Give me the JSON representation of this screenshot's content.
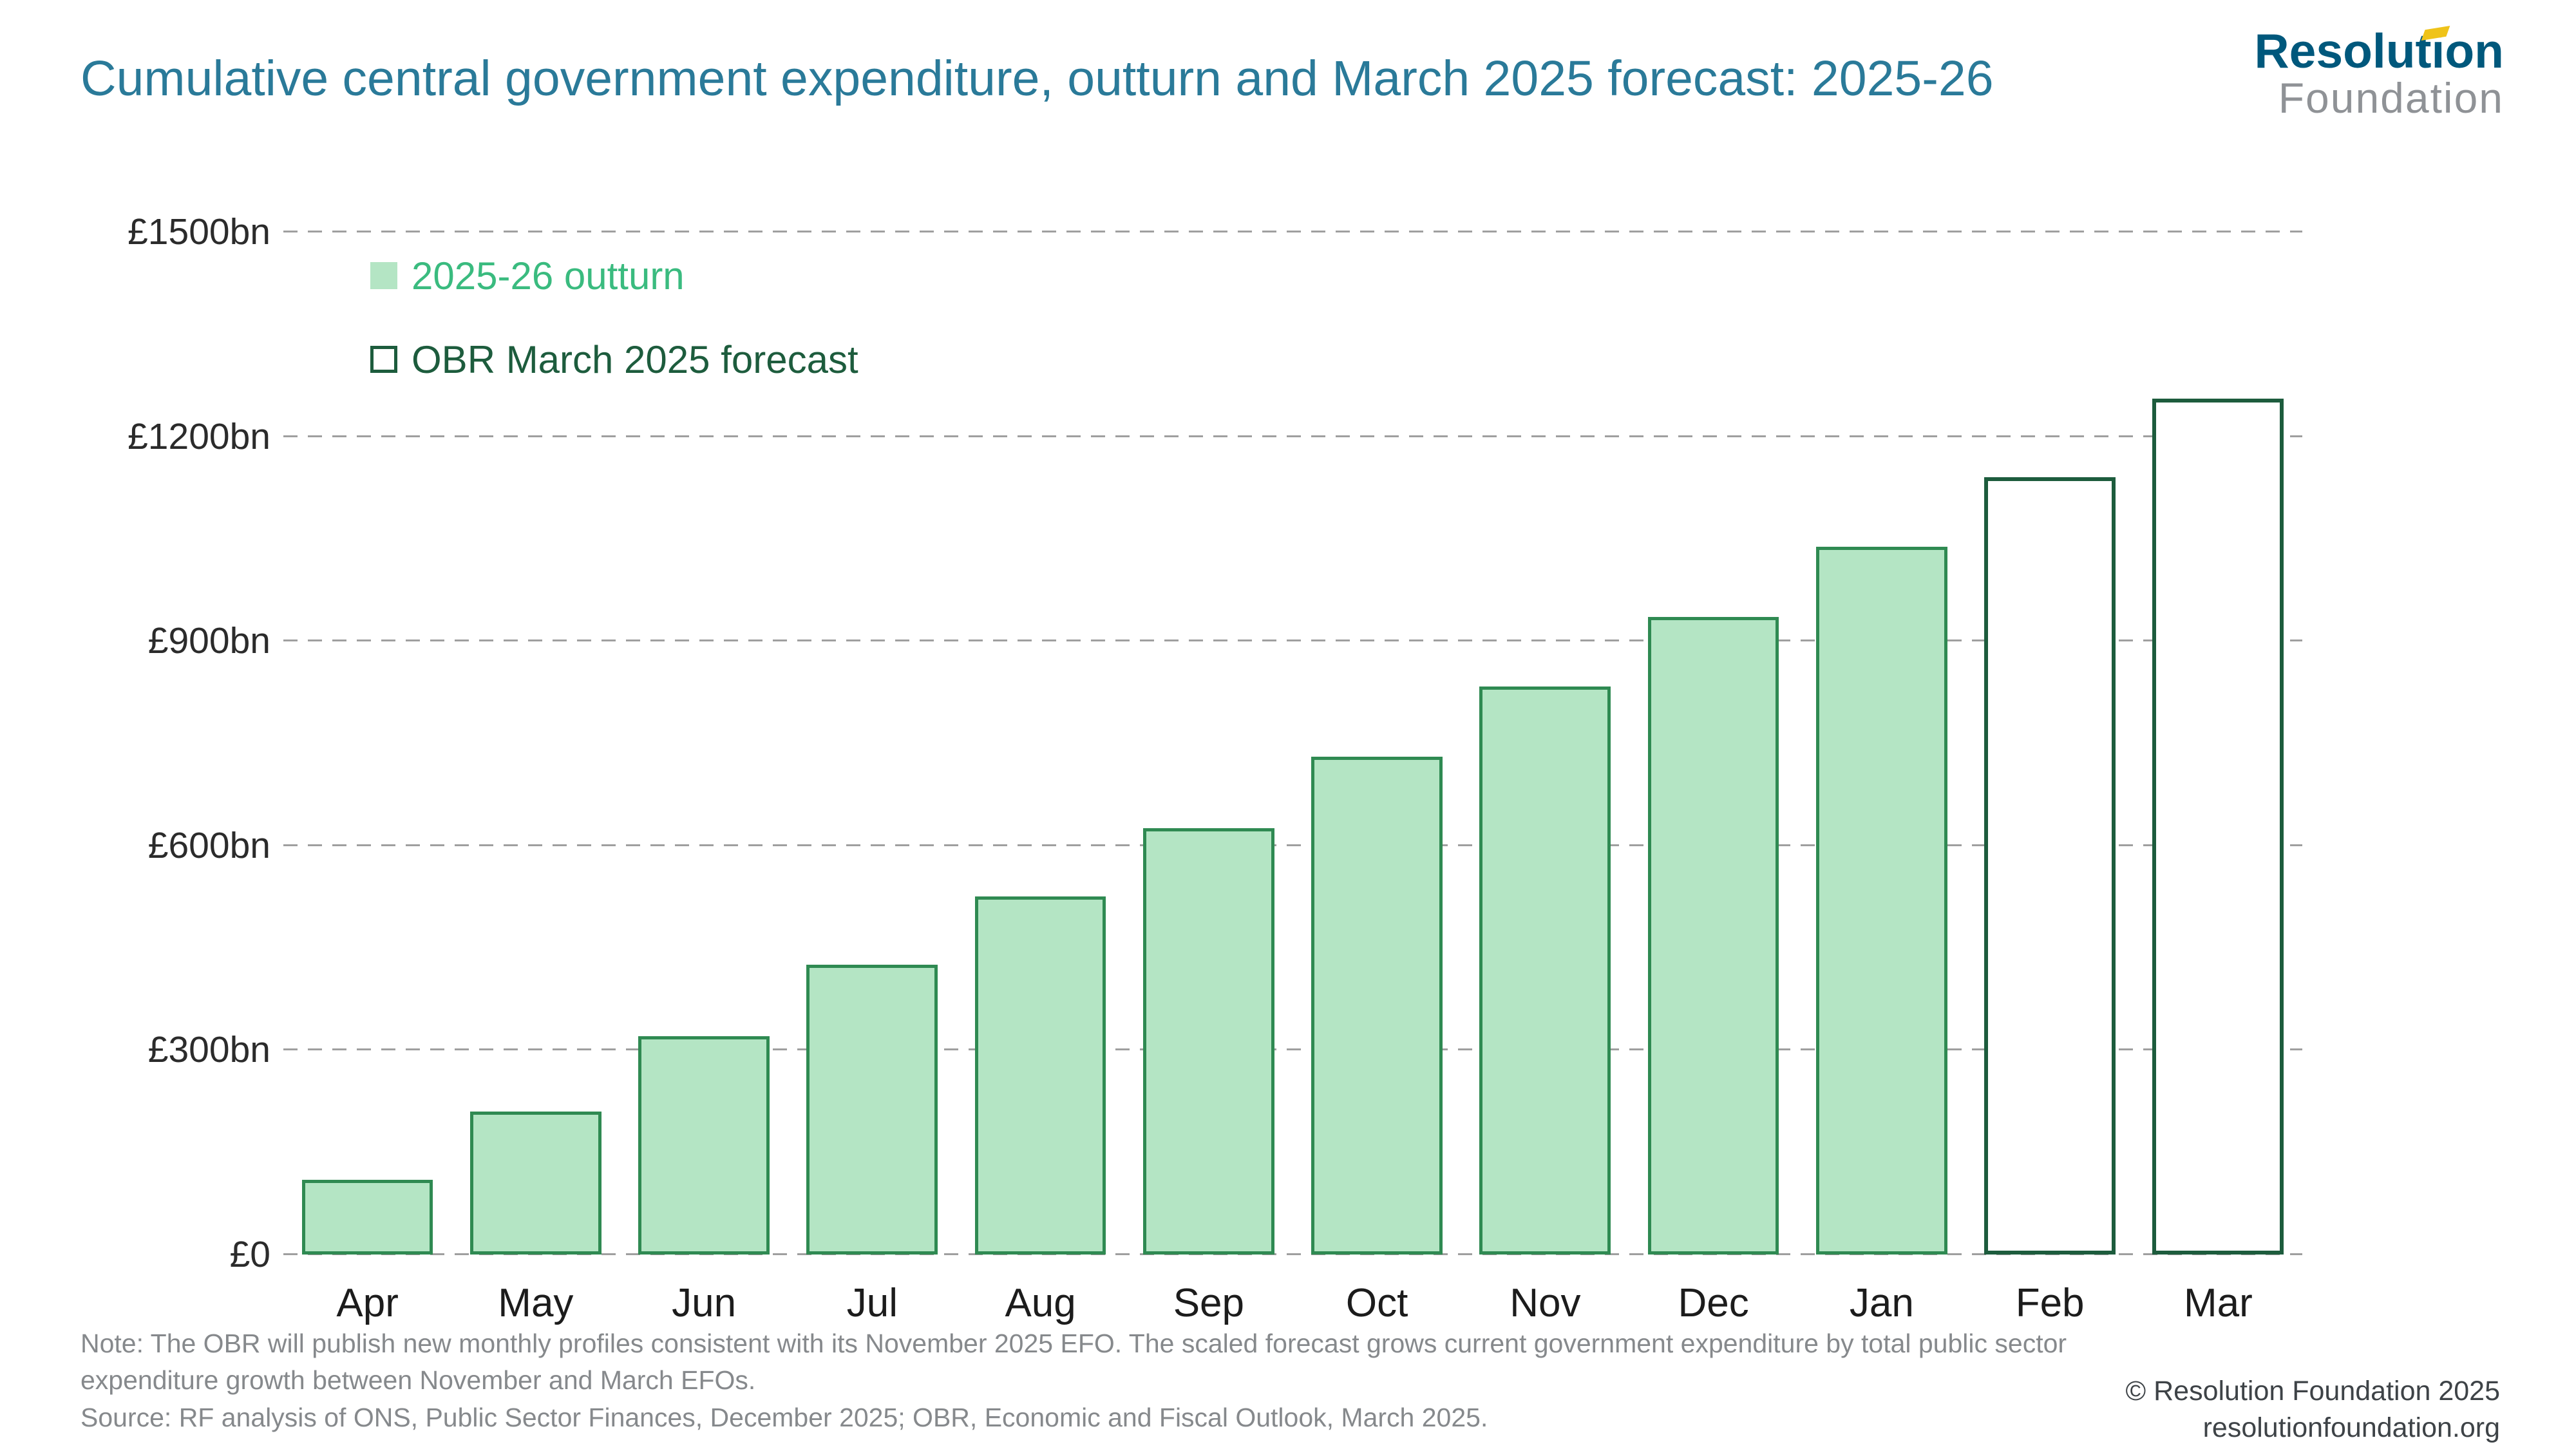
{
  "header": {
    "title": "Cumulative central government expenditure, outturn and March 2025 forecast: 2025-26",
    "logo": {
      "line1": "Resolution",
      "line2": "Foundation",
      "accent_color": "#efc319",
      "resolution_color": "#00587c",
      "foundation_color": "#8f9296"
    }
  },
  "chart_data": {
    "type": "bar",
    "title": "Cumulative central government expenditure, outturn and March 2025 forecast: 2025-26",
    "categories": [
      "Apr",
      "May",
      "Jun",
      "Jul",
      "Aug",
      "Sep",
      "Oct",
      "Nov",
      "Dec",
      "Jan",
      "Feb",
      "Mar"
    ],
    "series": [
      {
        "name": "2025-26 outturn",
        "style": "filled",
        "fill_color": "#b4e5c4",
        "border_color": "#2f8a52",
        "values": [
          110,
          210,
          320,
          425,
          525,
          625,
          730,
          833,
          935,
          1038,
          null,
          null
        ]
      },
      {
        "name": "OBR March 2025 forecast",
        "style": "outline",
        "fill_color": "#ffffff",
        "border_color": "#1d5c3d",
        "values": [
          null,
          null,
          null,
          null,
          null,
          null,
          null,
          null,
          null,
          null,
          1140,
          1255
        ]
      }
    ],
    "xlabel": "",
    "ylabel": "",
    "ylim": [
      0,
      1500
    ],
    "yticks": [
      {
        "value": 0,
        "label": "£0"
      },
      {
        "value": 300,
        "label": "£300bn"
      },
      {
        "value": 600,
        "label": "£600bn"
      },
      {
        "value": 900,
        "label": "£900bn"
      },
      {
        "value": 1200,
        "label": "£1200bn"
      },
      {
        "value": 1500,
        "label": "£1500bn"
      }
    ],
    "grid": "horizontal dashed",
    "legend_position": "top-left inside plot"
  },
  "footnotes": {
    "note": "Note: The OBR will publish new monthly profiles consistent with its November 2025 EFO. The scaled forecast grows current government expenditure by total public sector expenditure growth between November and March EFOs.",
    "source": "Source: RF analysis of ONS, Public Sector Finances, December 2025; OBR, Economic and Fiscal Outlook, March 2025."
  },
  "footer": {
    "copyright": "© Resolution Foundation 2025",
    "website": "resolutionfoundation.org"
  }
}
